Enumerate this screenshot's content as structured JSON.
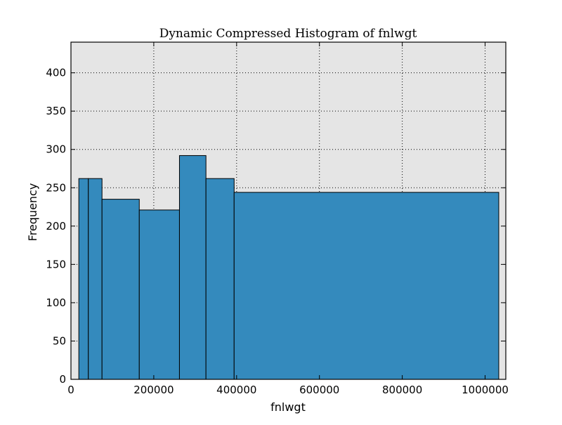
{
  "chart_data": {
    "type": "bar",
    "title": "Dynamic Compressed Histogram of fnlwgt",
    "xlabel": "fnlwgt",
    "ylabel": "Frequency",
    "xlim": [
      0,
      1050000
    ],
    "ylim": [
      0,
      440
    ],
    "grid": true,
    "bins": [
      {
        "x0": 19000,
        "x1": 42000,
        "count": 262
      },
      {
        "x0": 42000,
        "x1": 75000,
        "count": 262
      },
      {
        "x0": 75000,
        "x1": 165000,
        "count": 235
      },
      {
        "x0": 165000,
        "x1": 262000,
        "count": 221
      },
      {
        "x0": 262000,
        "x1": 326000,
        "count": 292
      },
      {
        "x0": 326000,
        "x1": 394000,
        "count": 262
      },
      {
        "x0": 394000,
        "x1": 1033000,
        "count": 244
      }
    ],
    "xticks": [
      0,
      200000,
      400000,
      600000,
      800000,
      1000000
    ],
    "xtick_labels": [
      "0",
      "200000",
      "400000",
      "600000",
      "800000",
      "1000000"
    ],
    "yticks": [
      0,
      50,
      100,
      150,
      200,
      250,
      300,
      350,
      400
    ],
    "ytick_labels": [
      "0",
      "50",
      "100",
      "150",
      "200",
      "250",
      "300",
      "350",
      "400"
    ],
    "colors": {
      "bar_fill": "#348abd",
      "bar_edge": "#000000",
      "plot_background": "#e5e5e5",
      "grid": "#000000"
    }
  }
}
